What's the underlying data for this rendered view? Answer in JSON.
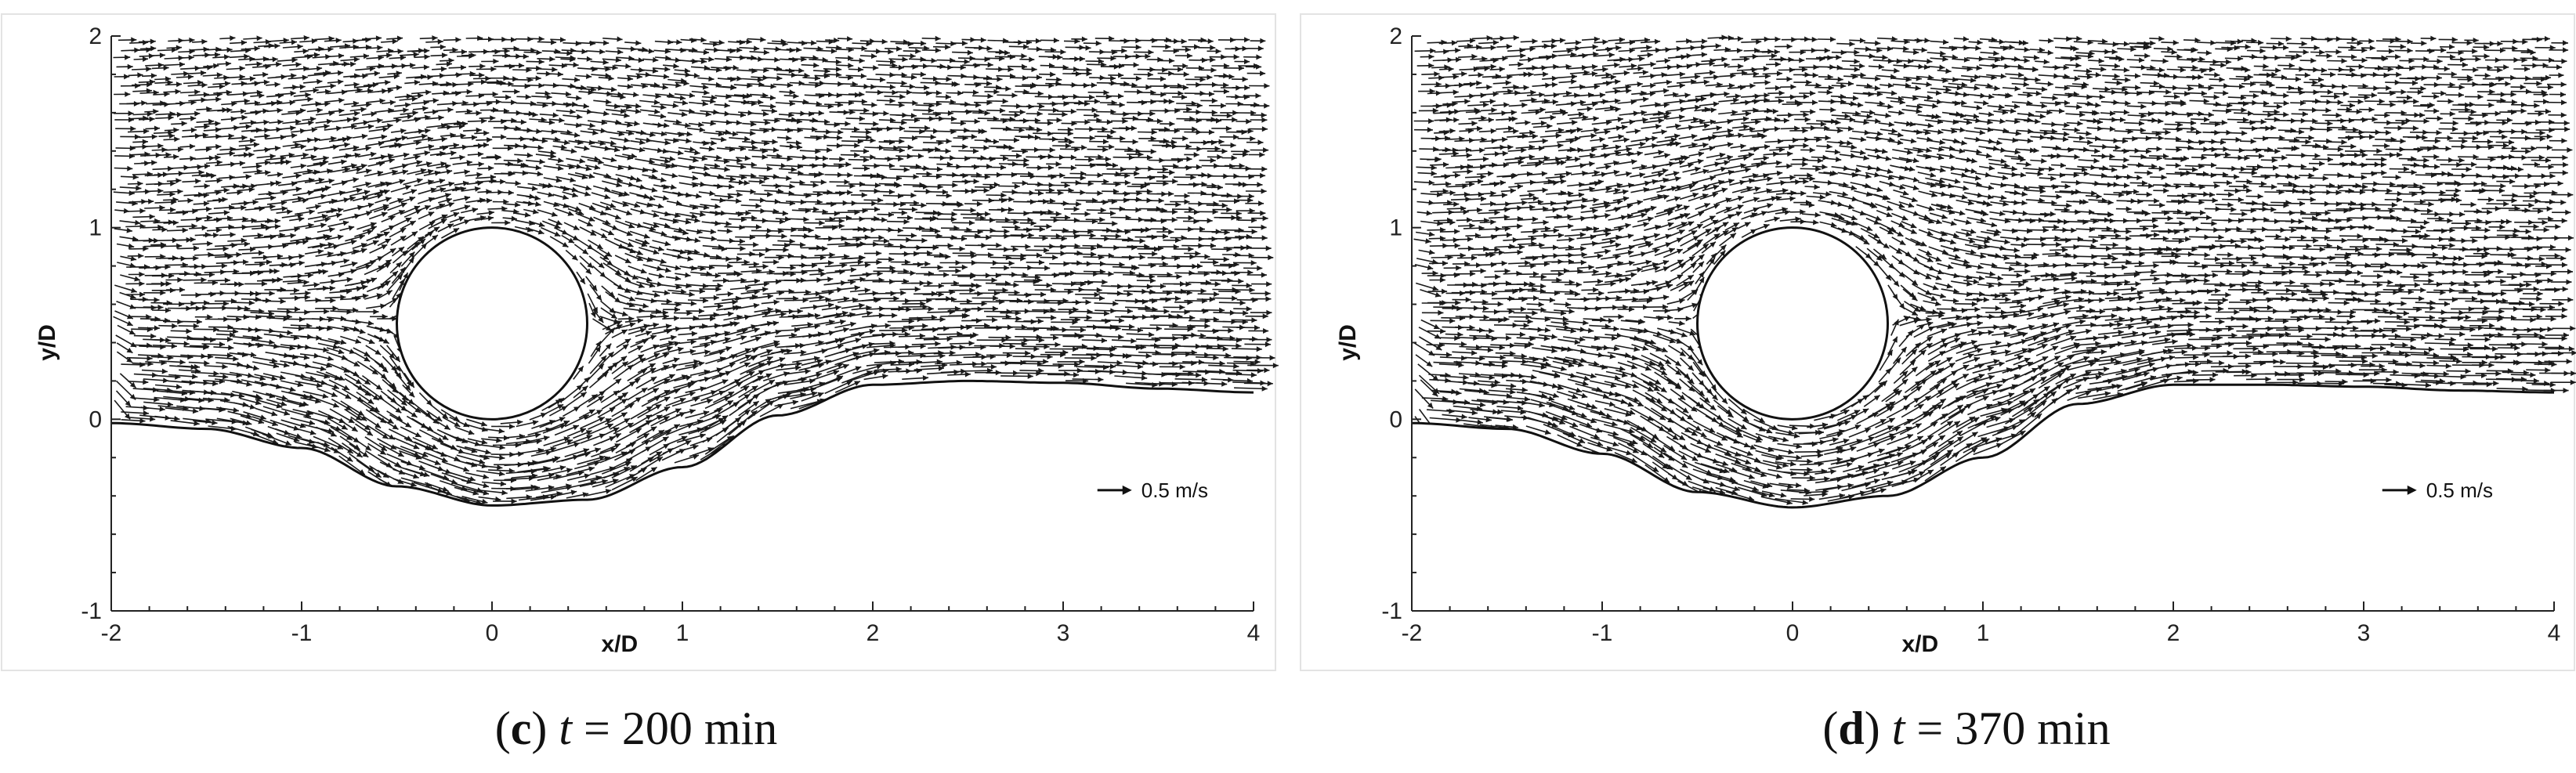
{
  "colors": {
    "vector": "#1a1a1a",
    "axis": "#222222",
    "frame": "#dddddd"
  },
  "chart_data": [
    {
      "type": "vector_field",
      "panel_letter": "c",
      "caption_var": "t",
      "caption_value": "= 200 min",
      "xlabel": "x/D",
      "ylabel": "y/D",
      "xlim": [
        -2,
        4
      ],
      "ylim": [
        -1,
        2
      ],
      "x_ticks": [
        "-2",
        "-1",
        "0",
        "1",
        "2",
        "3",
        "4"
      ],
      "y_ticks": [
        "-1",
        "0",
        "1",
        "2"
      ],
      "reference_vector": "0.5 m/s",
      "cylinder": {
        "center": [
          0,
          0.5
        ],
        "diameter": 1
      },
      "bed_profile": [
        [
          -2,
          -0.02
        ],
        [
          -1.5,
          -0.05
        ],
        [
          -1,
          -0.15
        ],
        [
          -0.5,
          -0.35
        ],
        [
          0,
          -0.45
        ],
        [
          0.5,
          -0.42
        ],
        [
          1,
          -0.25
        ],
        [
          1.5,
          0.02
        ],
        [
          2,
          0.18
        ],
        [
          2.5,
          0.2
        ],
        [
          3,
          0.19
        ],
        [
          3.5,
          0.16
        ],
        [
          4,
          0.14
        ]
      ],
      "grid": false
    },
    {
      "type": "vector_field",
      "panel_letter": "d",
      "caption_var": "t",
      "caption_value": "= 370 min",
      "xlabel": "x/D",
      "ylabel": "y/D",
      "xlim": [
        -2,
        4
      ],
      "ylim": [
        -1,
        2
      ],
      "x_ticks": [
        "-2",
        "-1",
        "0",
        "1",
        "2",
        "3",
        "4"
      ],
      "y_ticks": [
        "-1",
        "0",
        "1",
        "2"
      ],
      "reference_vector": "0.5 m/s",
      "cylinder": {
        "center": [
          0,
          0.5
        ],
        "diameter": 1
      },
      "bed_profile": [
        [
          -2,
          -0.02
        ],
        [
          -1.5,
          -0.05
        ],
        [
          -1,
          -0.18
        ],
        [
          -0.5,
          -0.38
        ],
        [
          0,
          -0.46
        ],
        [
          0.5,
          -0.4
        ],
        [
          1,
          -0.2
        ],
        [
          1.5,
          0.08
        ],
        [
          2,
          0.18
        ],
        [
          2.5,
          0.18
        ],
        [
          3,
          0.17
        ],
        [
          3.5,
          0.15
        ],
        [
          4,
          0.14
        ]
      ],
      "grid": false
    }
  ]
}
